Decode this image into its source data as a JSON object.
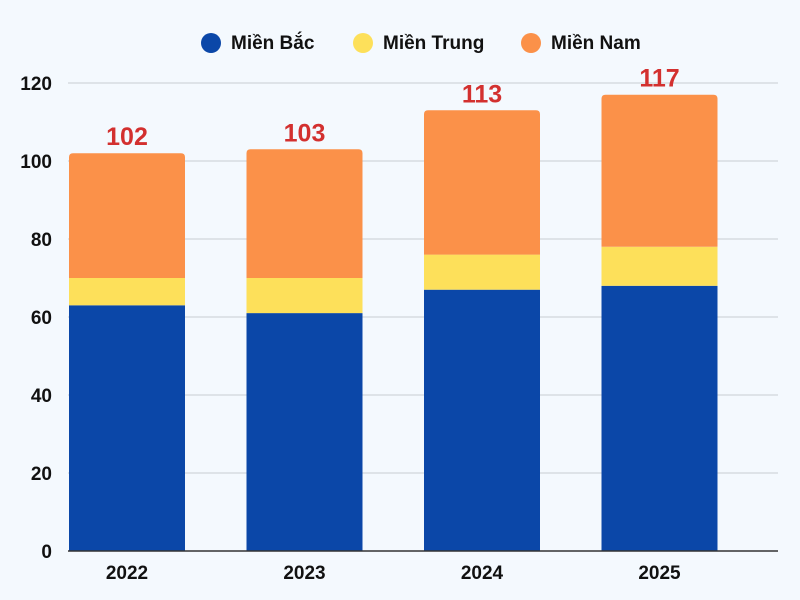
{
  "chart_data": {
    "type": "bar",
    "stacked": true,
    "title": "",
    "xlabel": "",
    "ylabel": "",
    "categories": [
      "2022",
      "2023",
      "2024",
      "2025"
    ],
    "series": [
      {
        "name": "Miền Bắc",
        "color": "#0b47a8",
        "values": [
          63,
          61,
          67,
          68
        ]
      },
      {
        "name": "Miền Trung",
        "color": "#fde05a",
        "values": [
          7,
          9,
          9,
          10
        ]
      },
      {
        "name": "Miền Nam",
        "color": "#fb9149",
        "values": [
          32,
          33,
          37,
          39
        ]
      }
    ],
    "totals": [
      "102",
      "103",
      "113",
      "117"
    ],
    "total_color": "#d3302f",
    "ylim": [
      0,
      120
    ],
    "yticks": [
      "0",
      "20",
      "40",
      "60",
      "80",
      "100",
      "120"
    ],
    "grid": true,
    "legend_position": "top-center"
  }
}
